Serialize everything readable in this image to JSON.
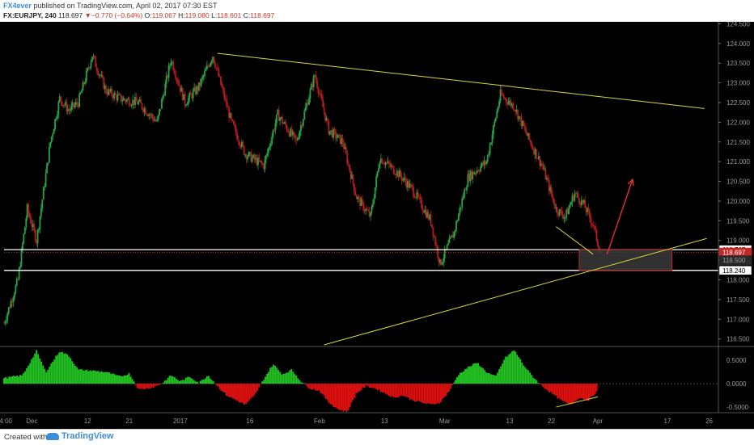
{
  "header": {
    "author": "FX4ever",
    "published_text": "published on TradingView.com, April 02, 2017 07:30 EST",
    "symbol": "FX:EURJPY, 240",
    "last_price": "118.697",
    "change_arrow": "▼",
    "change": "−0.770 (−0.64%)",
    "open_label": "O:",
    "open": "119.067",
    "high_label": "H:",
    "high": "119.080",
    "low_label": "L:",
    "low": "118.601",
    "close_label": "C:",
    "close": "118.697"
  },
  "footer": {
    "created_with": "Created with",
    "brand": "TradingView"
  },
  "colors": {
    "background": "#000000",
    "up_candle": "#26a544",
    "down_candle": "#b71c1c",
    "trendline": "#d8d83a",
    "level_line": "#ffffff",
    "arrow": "#e8302d",
    "histogram_up": "#22c322",
    "histogram_down": "#e01010"
  },
  "chart_data": {
    "type": "candlestick",
    "symbol": "FX:EURJPY",
    "timeframe": "240",
    "y_axis": {
      "ticks": [
        "124.500",
        "124.000",
        "123.500",
        "123.000",
        "122.500",
        "122.000",
        "121.500",
        "121.000",
        "120.500",
        "120.000",
        "119.500",
        "119.000",
        "118.500",
        "118.000",
        "117.500",
        "117.000",
        "116.500"
      ],
      "range": [
        116.35,
        124.55
      ]
    },
    "x_axis": {
      "ticks": [
        "14:00",
        "Dec",
        "12",
        "21",
        "2017",
        "16",
        "Feb",
        "13",
        "Mar",
        "13",
        "22",
        "Apr",
        "17",
        "26"
      ],
      "tick_days": [
        0,
        6,
        18,
        27,
        38,
        53,
        68,
        82,
        95,
        109,
        118,
        128,
        143,
        152
      ]
    },
    "price_path": [
      {
        "day": 0,
        "price": 116.9
      },
      {
        "day": 3,
        "price": 118.0
      },
      {
        "day": 5,
        "price": 119.8
      },
      {
        "day": 7,
        "price": 119.0
      },
      {
        "day": 10,
        "price": 121.5
      },
      {
        "day": 12,
        "price": 122.6
      },
      {
        "day": 14,
        "price": 122.3
      },
      {
        "day": 16,
        "price": 122.5
      },
      {
        "day": 19,
        "price": 123.7
      },
      {
        "day": 22,
        "price": 122.8
      },
      {
        "day": 25,
        "price": 122.6
      },
      {
        "day": 29,
        "price": 122.5
      },
      {
        "day": 33,
        "price": 122.0
      },
      {
        "day": 36,
        "price": 123.6
      },
      {
        "day": 39,
        "price": 122.5
      },
      {
        "day": 42,
        "price": 122.9
      },
      {
        "day": 45,
        "price": 123.7
      },
      {
        "day": 49,
        "price": 122.0
      },
      {
        "day": 52,
        "price": 121.2
      },
      {
        "day": 56,
        "price": 120.9
      },
      {
        "day": 59,
        "price": 122.2
      },
      {
        "day": 63,
        "price": 121.5
      },
      {
        "day": 67,
        "price": 123.2
      },
      {
        "day": 70,
        "price": 121.8
      },
      {
        "day": 73,
        "price": 121.5
      },
      {
        "day": 76,
        "price": 120.1
      },
      {
        "day": 79,
        "price": 119.6
      },
      {
        "day": 81,
        "price": 121.1
      },
      {
        "day": 85,
        "price": 120.7
      },
      {
        "day": 88,
        "price": 120.3
      },
      {
        "day": 92,
        "price": 119.5
      },
      {
        "day": 94,
        "price": 118.4
      },
      {
        "day": 97,
        "price": 119.2
      },
      {
        "day": 100,
        "price": 120.6
      },
      {
        "day": 104,
        "price": 121.0
      },
      {
        "day": 107,
        "price": 122.7
      },
      {
        "day": 110,
        "price": 122.4
      },
      {
        "day": 113,
        "price": 121.6
      },
      {
        "day": 116,
        "price": 120.9
      },
      {
        "day": 119,
        "price": 119.8
      },
      {
        "day": 121,
        "price": 119.6
      },
      {
        "day": 123,
        "price": 120.2
      },
      {
        "day": 125,
        "price": 119.9
      },
      {
        "day": 127,
        "price": 119.4
      },
      {
        "day": 128.5,
        "price": 118.7
      }
    ],
    "price_tags": [
      {
        "label": "118.767",
        "value": 118.767,
        "style": "white"
      },
      {
        "label": "118.697",
        "value": 118.697,
        "style": "red"
      },
      {
        "label": "118.500",
        "value": 118.5,
        "style": "grey"
      },
      {
        "label": "118.240",
        "value": 118.24,
        "style": "white"
      }
    ],
    "horizontal_levels": [
      118.767,
      118.24
    ],
    "drawings": {
      "upper_trendline": [
        {
          "day": 46,
          "price": 123.75
        },
        {
          "day": 151,
          "price": 122.35
        }
      ],
      "lower_trendline": [
        {
          "day": 69,
          "price": 116.35
        },
        {
          "day": 151.5,
          "price": 119.05
        }
      ],
      "small_support_line": [
        {
          "day": 119,
          "price": 119.35
        },
        {
          "day": 127,
          "price": 118.65
        }
      ],
      "demand_zone": {
        "day_from": 124,
        "day_to": 144,
        "price_from": 118.24,
        "price_to": 118.767
      },
      "forecast_arrow": [
        {
          "day": 130,
          "price": 118.65
        },
        {
          "day": 135.5,
          "price": 120.55
        }
      ]
    },
    "oscillator": {
      "type": "histogram",
      "ticks": [
        "0.5000",
        "0.0000",
        "-0.5000"
      ],
      "range": [
        -0.62,
        0.78
      ],
      "path": [
        {
          "day": 0,
          "value": 0.12
        },
        {
          "day": 2,
          "value": 0.15
        },
        {
          "day": 4,
          "value": 0.18
        },
        {
          "day": 7,
          "value": 0.7
        },
        {
          "day": 9,
          "value": 0.25
        },
        {
          "day": 12,
          "value": 0.7
        },
        {
          "day": 14,
          "value": 0.6
        },
        {
          "day": 16,
          "value": 0.3
        },
        {
          "day": 19,
          "value": 0.28
        },
        {
          "day": 22,
          "value": 0.25
        },
        {
          "day": 25,
          "value": 0.15
        },
        {
          "day": 27,
          "value": 0.22
        },
        {
          "day": 29,
          "value": -0.12
        },
        {
          "day": 32,
          "value": -0.08
        },
        {
          "day": 34,
          "value": 0.0
        },
        {
          "day": 36,
          "value": 0.18
        },
        {
          "day": 38,
          "value": 0.05
        },
        {
          "day": 40,
          "value": 0.15
        },
        {
          "day": 42,
          "value": 0.02
        },
        {
          "day": 44,
          "value": 0.18
        },
        {
          "day": 46,
          "value": -0.05
        },
        {
          "day": 48,
          "value": -0.25
        },
        {
          "day": 50,
          "value": -0.35
        },
        {
          "day": 52,
          "value": -0.45
        },
        {
          "day": 54,
          "value": -0.25
        },
        {
          "day": 56,
          "value": 0.1
        },
        {
          "day": 58,
          "value": 0.42
        },
        {
          "day": 60,
          "value": 0.2
        },
        {
          "day": 62,
          "value": 0.3
        },
        {
          "day": 64,
          "value": 0.05
        },
        {
          "day": 66,
          "value": -0.1
        },
        {
          "day": 68,
          "value": -0.15
        },
        {
          "day": 70,
          "value": -0.4
        },
        {
          "day": 72,
          "value": -0.55
        },
        {
          "day": 74,
          "value": -0.6
        },
        {
          "day": 76,
          "value": -0.2
        },
        {
          "day": 78,
          "value": -0.05
        },
        {
          "day": 80,
          "value": -0.1
        },
        {
          "day": 82,
          "value": -0.2
        },
        {
          "day": 84,
          "value": -0.3
        },
        {
          "day": 86,
          "value": -0.25
        },
        {
          "day": 88,
          "value": -0.35
        },
        {
          "day": 90,
          "value": -0.4
        },
        {
          "day": 92,
          "value": -0.45
        },
        {
          "day": 94,
          "value": -0.4
        },
        {
          "day": 96,
          "value": -0.15
        },
        {
          "day": 98,
          "value": 0.2
        },
        {
          "day": 100,
          "value": 0.35
        },
        {
          "day": 102,
          "value": 0.45
        },
        {
          "day": 104,
          "value": 0.25
        },
        {
          "day": 106,
          "value": 0.15
        },
        {
          "day": 108,
          "value": 0.55
        },
        {
          "day": 110,
          "value": 0.72
        },
        {
          "day": 112,
          "value": 0.4
        },
        {
          "day": 114,
          "value": 0.15
        },
        {
          "day": 116,
          "value": -0.05
        },
        {
          "day": 118,
          "value": -0.2
        },
        {
          "day": 120,
          "value": -0.35
        },
        {
          "day": 122,
          "value": -0.45
        },
        {
          "day": 124,
          "value": -0.3
        },
        {
          "day": 126,
          "value": -0.35
        },
        {
          "day": 128,
          "value": -0.15
        }
      ],
      "divergence_line": [
        {
          "day": 119,
          "value": -0.5
        },
        {
          "day": 128,
          "value": -0.28
        }
      ]
    }
  }
}
